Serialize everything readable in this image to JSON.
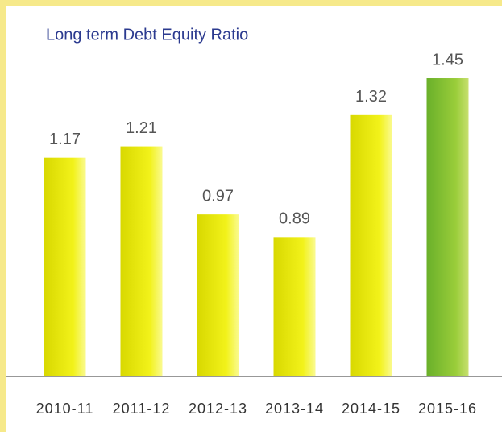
{
  "chart_data": {
    "type": "bar",
    "title": "Long term Debt Equity Ratio",
    "categories": [
      "2010-11",
      "2011-12",
      "2012-13",
      "2013-14",
      "2014-15",
      "2015-16"
    ],
    "values": [
      1.17,
      1.21,
      0.97,
      0.89,
      1.32,
      1.45
    ],
    "colors": [
      "#e6e600",
      "#e6e600",
      "#e6e600",
      "#e6e600",
      "#e6e600",
      "#7cbf2e"
    ],
    "ylim": [
      0.4,
      1.5
    ]
  }
}
